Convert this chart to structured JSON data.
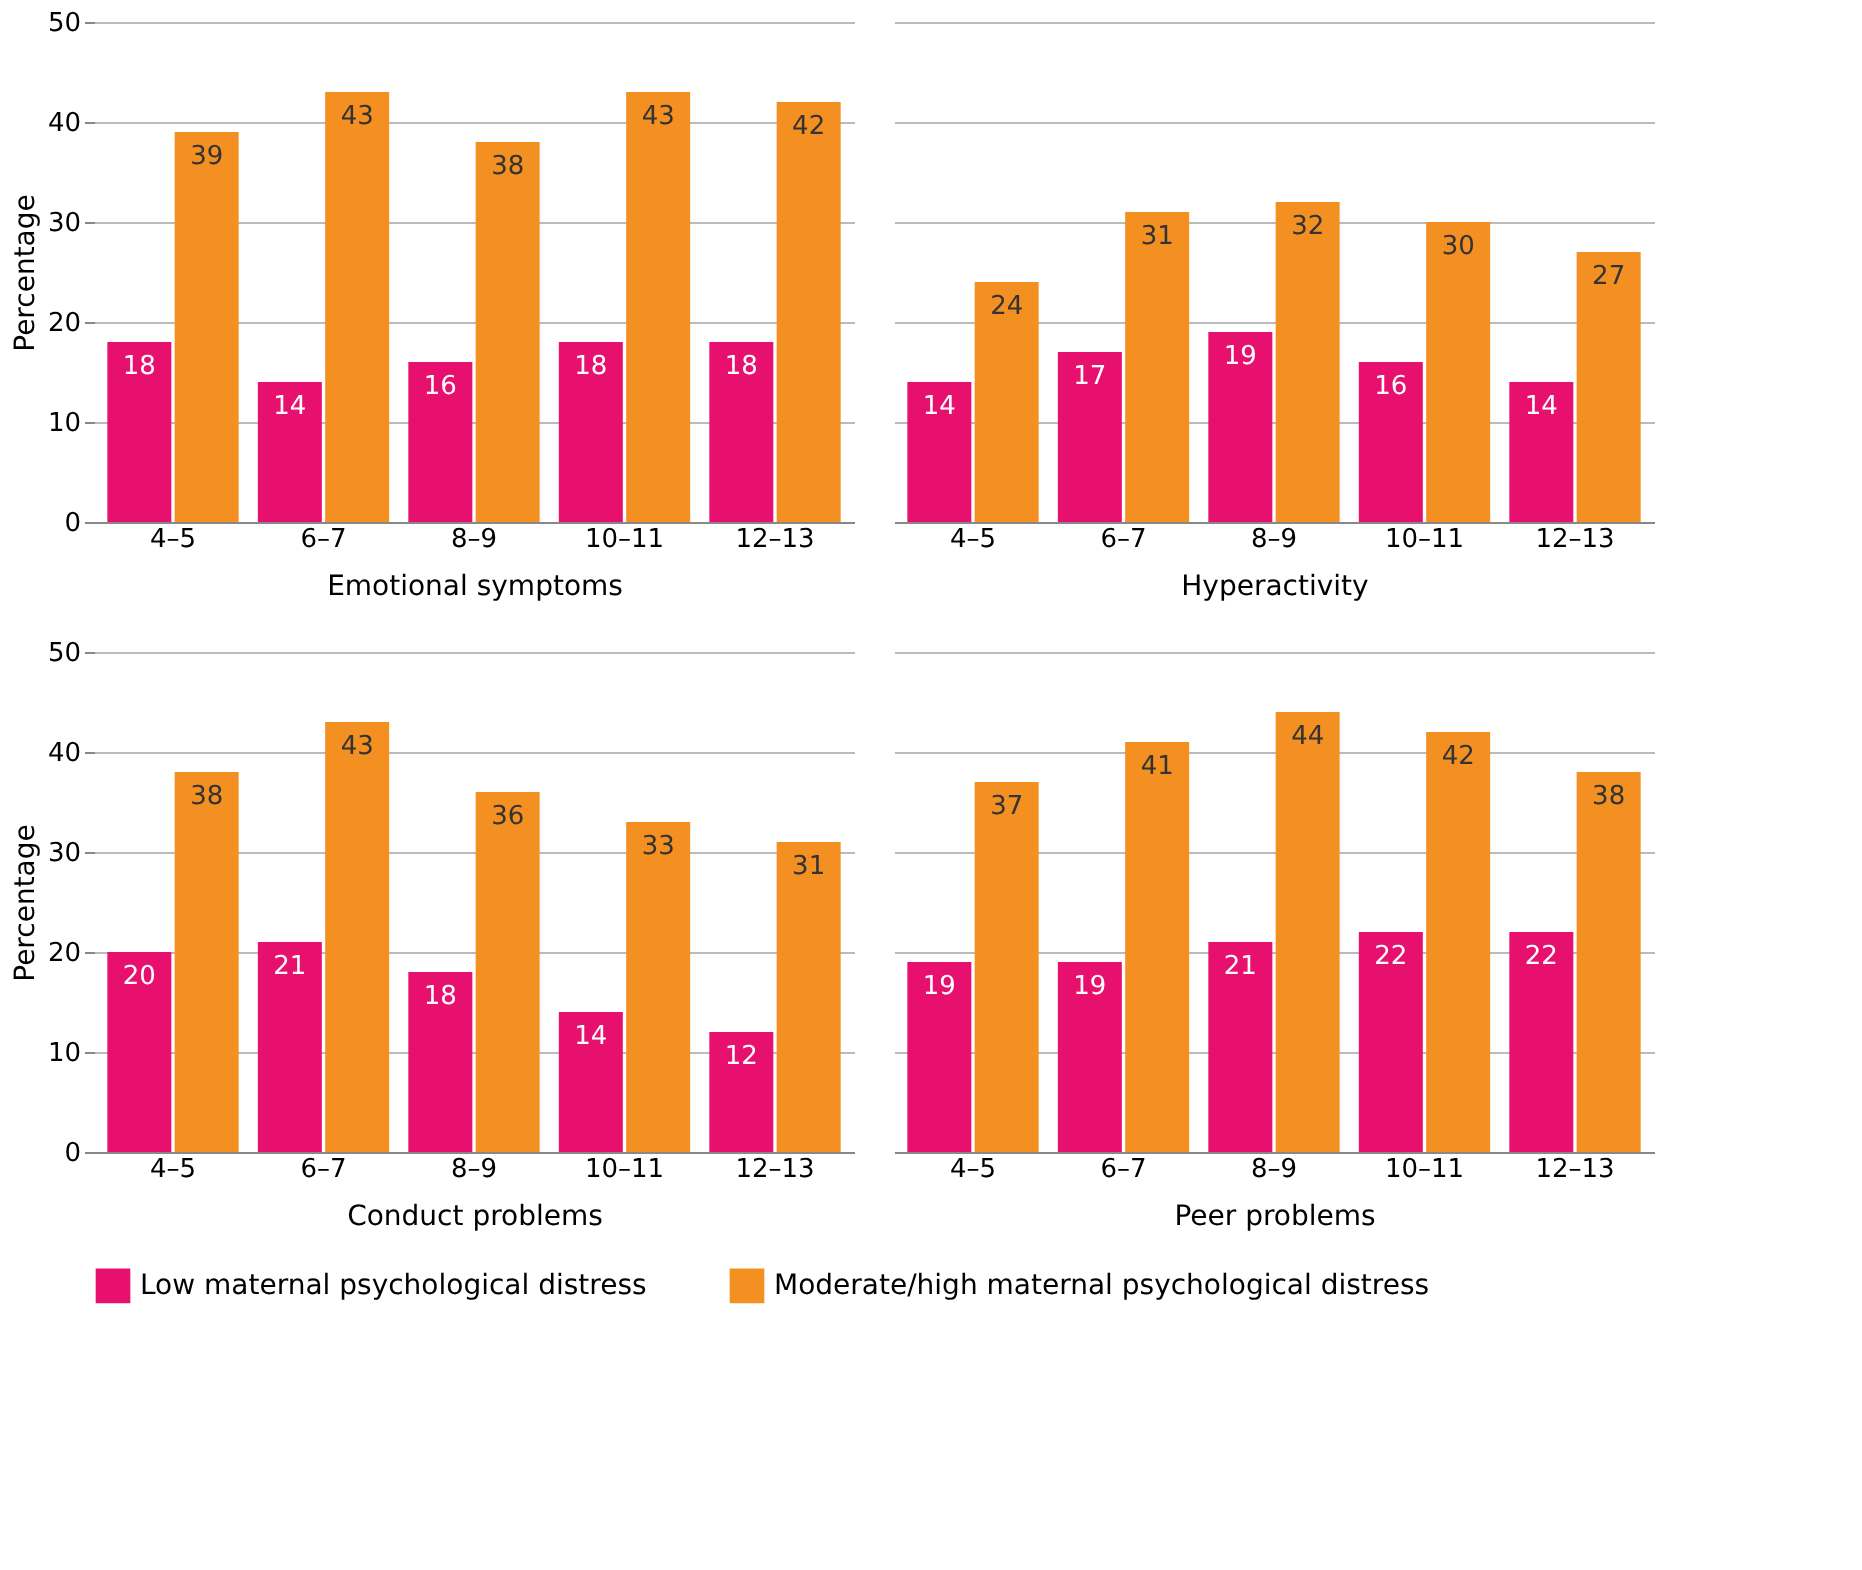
{
  "chart_data": [
    {
      "type": "bar",
      "xlabel": "Emotional symptoms",
      "ylabel": "Percentage",
      "categories": [
        "4–5",
        "6–7",
        "8–9",
        "10–11",
        "12–13"
      ],
      "series": [
        {
          "name": "Low maternal psychological distress",
          "color": "#e8106e",
          "values": [
            18,
            14,
            16,
            18,
            18
          ]
        },
        {
          "name": "Moderate/high maternal psychological distress",
          "color": "#f39021",
          "values": [
            39,
            43,
            38,
            43,
            42
          ]
        }
      ],
      "ylim": [
        0,
        50
      ],
      "yticks": [
        0,
        10,
        20,
        30,
        40,
        50
      ],
      "grid": "y",
      "data_labels": true,
      "legend": "bottom"
    },
    {
      "type": "bar",
      "xlabel": "Hyperactivity",
      "categories": [
        "4–5",
        "6–7",
        "8–9",
        "10–11",
        "12–13"
      ],
      "series": [
        {
          "name": "Low maternal psychological distress",
          "color": "#e8106e",
          "values": [
            14,
            17,
            19,
            16,
            14
          ]
        },
        {
          "name": "Moderate/high maternal psychological distress",
          "color": "#f39021",
          "values": [
            24,
            31,
            32,
            30,
            27
          ]
        }
      ],
      "ylim": [
        0,
        50
      ],
      "yticks": [
        0,
        10,
        20,
        30,
        40,
        50
      ],
      "grid": "y",
      "data_labels": true,
      "legend": "bottom",
      "tick_labels": "x"
    },
    {
      "type": "bar",
      "xlabel": "Conduct problems",
      "ylabel": "Percentage",
      "categories": [
        "4–5",
        "6–7",
        "8–9",
        "10–11",
        "12–13"
      ],
      "series": [
        {
          "name": "Low maternal psychological distress",
          "color": "#e8106e",
          "values": [
            20,
            21,
            18,
            14,
            12
          ]
        },
        {
          "name": "Moderate/high maternal psychological distress",
          "color": "#f39021",
          "values": [
            38,
            43,
            36,
            33,
            31
          ]
        }
      ],
      "ylim": [
        0,
        50
      ],
      "yticks": [
        0,
        10,
        20,
        30,
        40,
        50
      ],
      "grid": "y",
      "data_labels": true,
      "legend": "bottom"
    },
    {
      "type": "bar",
      "xlabel": "Peer problems",
      "categories": [
        "4–5",
        "6–7",
        "8–9",
        "10–11",
        "12–13"
      ],
      "series": [
        {
          "name": "Low maternal psychological distress",
          "color": "#e8106e",
          "values": [
            19,
            19,
            21,
            22,
            22
          ]
        },
        {
          "name": "Moderate/high maternal psychological distress",
          "color": "#f39021",
          "values": [
            37,
            41,
            44,
            42,
            38
          ]
        }
      ],
      "ylim": [
        0,
        50
      ],
      "yticks": [
        0,
        10,
        20,
        30,
        40,
        50
      ],
      "grid": "y",
      "data_labels": true,
      "legend": "bottom",
      "tick_labels": "x"
    }
  ]
}
